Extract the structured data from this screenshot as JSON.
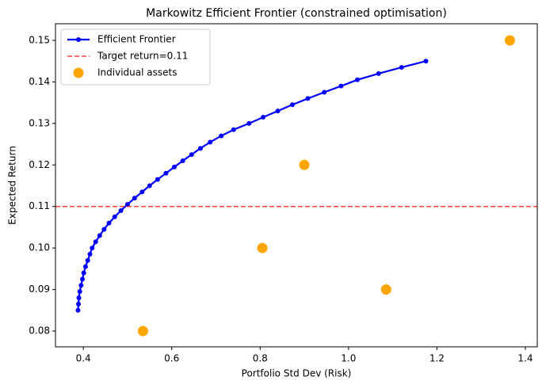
{
  "chart_data": {
    "type": "line",
    "title": "Markowitz Efficient Frontier (constrained optimisation)",
    "x_label": "Portfolio Std Dev (Risk)",
    "y_label": "Expected Return",
    "xlim": [
      0.337,
      1.427
    ],
    "ylim": [
      0.0762,
      0.154
    ],
    "xticks": [
      0.4,
      0.6,
      0.8,
      {
        "value": 1,
        "label": "1.0"
      },
      1.2,
      1.4
    ],
    "yticks": [
      0.08,
      0.09,
      {
        "value": 0.1,
        "label": "0.10"
      },
      0.11,
      0.12,
      0.13,
      0.14,
      0.15
    ],
    "legend": "upper left",
    "series": [
      {
        "name": "Efficient Frontier",
        "type": "line",
        "color": "#0000ff",
        "x": [
          0.388,
          0.389,
          0.39,
          0.392,
          0.395,
          0.398,
          0.401,
          0.405,
          0.41,
          0.415,
          0.42,
          0.428,
          0.437,
          0.447,
          0.458,
          0.471,
          0.485,
          0.5,
          0.516,
          0.533,
          0.55,
          0.568,
          0.587,
          0.606,
          0.625,
          0.645,
          0.665,
          0.687,
          0.712,
          0.74,
          0.775,
          0.807,
          0.84,
          0.873,
          0.908,
          0.945,
          0.983,
          1.02,
          1.068,
          1.12,
          1.175
        ],
        "values": [
          0.085,
          0.0865,
          0.088,
          0.0895,
          0.091,
          0.0925,
          0.094,
          0.0955,
          0.097,
          0.0985,
          0.1,
          0.1015,
          0.103,
          0.1045,
          0.106,
          0.1075,
          0.109,
          0.1105,
          0.112,
          0.1135,
          0.115,
          0.1165,
          0.118,
          0.1195,
          0.121,
          0.1225,
          0.124,
          0.1255,
          0.127,
          0.1285,
          0.13,
          0.1315,
          0.133,
          0.1345,
          0.136,
          0.1375,
          0.139,
          0.1405,
          0.142,
          0.1435,
          0.145
        ]
      },
      {
        "name": "Target return=0.11",
        "type": "hline",
        "color": "#ff0000",
        "value": 0.11
      },
      {
        "name": "Individual assets",
        "type": "scatter",
        "color": "#ffa500",
        "x": [
          0.535,
          0.805,
          0.9,
          1.085,
          1.365
        ],
        "values": [
          0.08,
          0.1,
          0.12,
          0.09,
          0.15
        ]
      }
    ]
  }
}
